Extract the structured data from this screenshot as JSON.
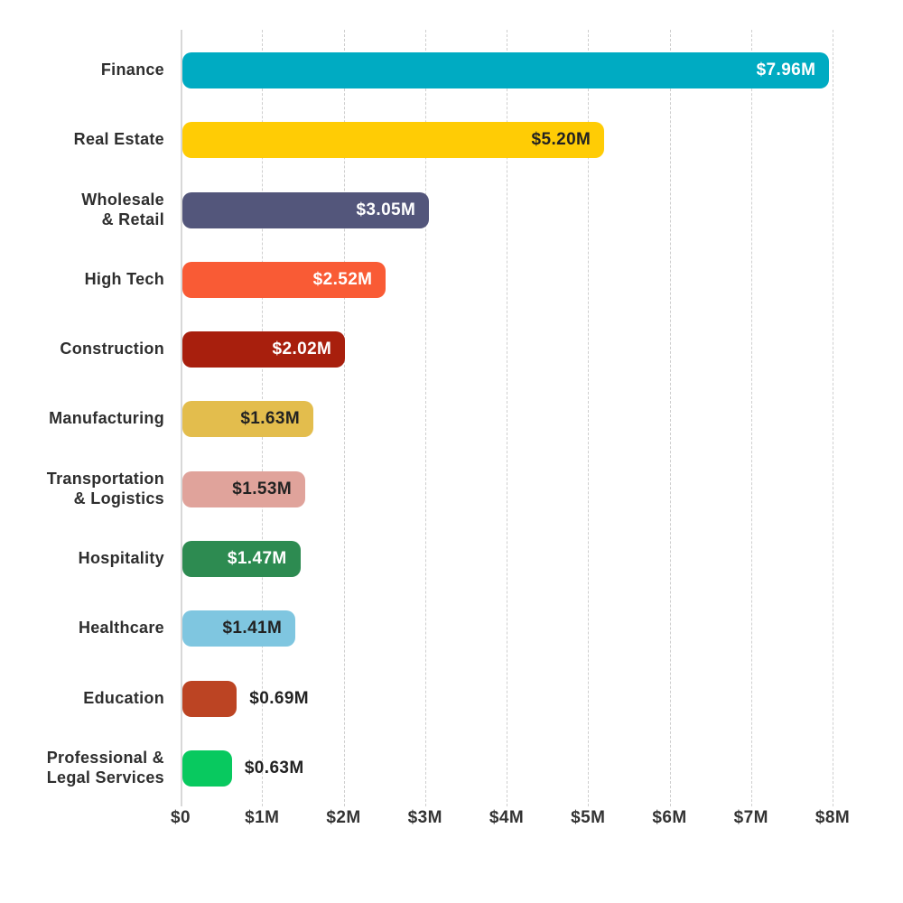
{
  "chart_data": {
    "type": "bar",
    "orientation": "horizontal",
    "title": "",
    "xlabel": "",
    "ylabel": "",
    "unit": "USD millions",
    "xlim": [
      0,
      8
    ],
    "grid": "vertical-dashed",
    "legend": "none",
    "x_ticks": [
      "$0",
      "$1M",
      "$2M",
      "$3M",
      "$4M",
      "$5M",
      "$6M",
      "$7M",
      "$8M"
    ],
    "x_tick_values": [
      0,
      1,
      2,
      3,
      4,
      5,
      6,
      7,
      8
    ],
    "categories": [
      "Finance",
      "Real Estate",
      "Wholesale & Retail",
      "High Tech",
      "Construction",
      "Manufacturing",
      "Transportation & Logistics",
      "Hospitality",
      "Healthcare",
      "Education",
      "Professional & Legal Services"
    ],
    "values": [
      7.96,
      5.2,
      3.05,
      2.52,
      2.02,
      1.63,
      1.53,
      1.47,
      1.41,
      0.69,
      0.63
    ],
    "bars": [
      {
        "label_lines": [
          "Finance"
        ],
        "value": 7.96,
        "value_label": "$7.96M",
        "color": "#00ABC2",
        "value_label_color": "#ffffff",
        "value_label_position": "inside"
      },
      {
        "label_lines": [
          "Real Estate"
        ],
        "value": 5.2,
        "value_label": "$5.20M",
        "color": "#FFCC05",
        "value_label_color": "#222222",
        "value_label_position": "inside"
      },
      {
        "label_lines": [
          "Wholesale",
          "& Retail"
        ],
        "value": 3.05,
        "value_label": "$3.05M",
        "color": "#53567B",
        "value_label_color": "#ffffff",
        "value_label_position": "inside"
      },
      {
        "label_lines": [
          "High Tech"
        ],
        "value": 2.52,
        "value_label": "$2.52M",
        "color": "#F95B35",
        "value_label_color": "#ffffff",
        "value_label_position": "inside"
      },
      {
        "label_lines": [
          "Construction"
        ],
        "value": 2.02,
        "value_label": "$2.02M",
        "color": "#A81F0D",
        "value_label_color": "#ffffff",
        "value_label_position": "inside"
      },
      {
        "label_lines": [
          "Manufacturing"
        ],
        "value": 1.63,
        "value_label": "$1.63M",
        "color": "#E3BD4D",
        "value_label_color": "#222222",
        "value_label_position": "inside"
      },
      {
        "label_lines": [
          "Transportation",
          "& Logistics"
        ],
        "value": 1.53,
        "value_label": "$1.53M",
        "color": "#E0A39B",
        "value_label_color": "#222222",
        "value_label_position": "inside"
      },
      {
        "label_lines": [
          "Hospitality"
        ],
        "value": 1.47,
        "value_label": "$1.47M",
        "color": "#2D8B51",
        "value_label_color": "#ffffff",
        "value_label_position": "inside"
      },
      {
        "label_lines": [
          "Healthcare"
        ],
        "value": 1.41,
        "value_label": "$1.41M",
        "color": "#7FC6E0",
        "value_label_color": "#222222",
        "value_label_position": "inside"
      },
      {
        "label_lines": [
          "Education"
        ],
        "value": 0.69,
        "value_label": "$0.69M",
        "color": "#BC4423",
        "value_label_color": "#222222",
        "value_label_position": "outside"
      },
      {
        "label_lines": [
          "Professional &",
          "Legal Services"
        ],
        "value": 0.63,
        "value_label": "$0.63M",
        "color": "#08C95F",
        "value_label_color": "#222222",
        "value_label_position": "outside"
      }
    ]
  },
  "style_colors": {
    "background": "#ffffff",
    "gridline": "#cfcfcf",
    "axis_line": "#d8d8d8",
    "category_text": "#2e2e2e",
    "tick_text": "#333333"
  }
}
